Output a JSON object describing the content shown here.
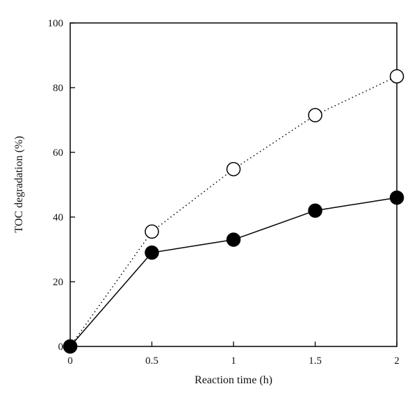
{
  "chart_data": {
    "type": "line",
    "title": "",
    "xlabel": "Reaction time (h)",
    "ylabel": "TOC degradation (%)",
    "xlim": [
      0,
      2
    ],
    "ylim": [
      0,
      100
    ],
    "x_ticks": [
      0,
      0.5,
      1,
      1.5,
      2
    ],
    "x_tick_labels": [
      "0",
      "0.5",
      "1",
      "1.5",
      "2"
    ],
    "y_ticks": [
      0,
      20,
      40,
      60,
      80,
      100
    ],
    "y_tick_labels": [
      "0",
      "20",
      "40",
      "60",
      "80",
      "100"
    ],
    "grid": false,
    "legend": "none",
    "x": [
      0,
      0.5,
      1,
      1.5,
      2
    ],
    "series": [
      {
        "marker": "open-circle",
        "line_style": "dotted",
        "color": "#000000",
        "values": [
          0,
          35.5,
          54.8,
          71.5,
          83.5
        ]
      },
      {
        "marker": "filled-circle",
        "line_style": "solid",
        "color": "#000000",
        "values": [
          0,
          29,
          33,
          42,
          46
        ]
      }
    ]
  }
}
